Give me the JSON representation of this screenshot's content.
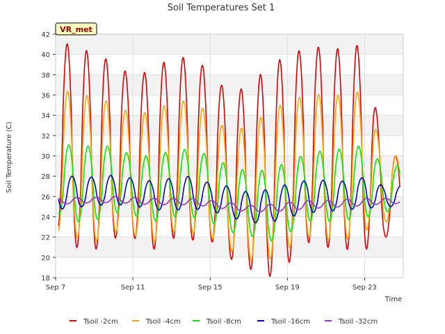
{
  "chart_data": {
    "type": "line",
    "title": "Soil Temperatures Set 1",
    "xlabel": "Time",
    "ylabel": "Soil Temperature (C)",
    "station_badge": "VR_met",
    "x_start_day": 7,
    "x_end_day": 25,
    "xlim": [
      "Sep 7",
      "Sep 25"
    ],
    "xticks": [
      {
        "label": "Sep 7",
        "day": 7
      },
      {
        "label": "Sep 11",
        "day": 11
      },
      {
        "label": "Sep 15",
        "day": 15
      },
      {
        "label": "Sep 19",
        "day": 19
      },
      {
        "label": "Sep 23",
        "day": 23
      }
    ],
    "ylim": [
      18,
      42
    ],
    "yticks": [
      18,
      20,
      22,
      24,
      26,
      28,
      30,
      32,
      34,
      36,
      38,
      40,
      42
    ],
    "grid": true,
    "legend_position": "bottom",
    "series": [
      {
        "name": "Tsoil -2cm",
        "color": "#dd0000",
        "peak_time": 0.6,
        "days": [
          "Sep 7",
          "Sep 8",
          "Sep 9",
          "Sep 10",
          "Sep 11",
          "Sep 12",
          "Sep 13",
          "Sep 14",
          "Sep 15",
          "Sep 16",
          "Sep 17",
          "Sep 18",
          "Sep 19",
          "Sep 20",
          "Sep 21",
          "Sep 22",
          "Sep 23",
          "Sep 24"
        ],
        "min": [
          23.0,
          21.0,
          20.7,
          21.9,
          22.0,
          20.7,
          21.9,
          21.7,
          21.7,
          19.9,
          18.9,
          18.0,
          19.3,
          21.5,
          21.0,
          20.8,
          20.7,
          22.0
        ],
        "max": [
          41.4,
          40.8,
          40.1,
          39.2,
          37.8,
          38.5,
          39.7,
          39.7,
          38.4,
          36.0,
          37.0,
          38.7,
          40.0,
          40.6,
          40.8,
          40.4,
          41.2,
          30.0
        ]
      },
      {
        "name": "Tsoil -4cm",
        "color": "#ffa500",
        "peak_time": 0.62,
        "days": [
          "Sep 7",
          "Sep 8",
          "Sep 9",
          "Sep 10",
          "Sep 11",
          "Sep 12",
          "Sep 13",
          "Sep 14",
          "Sep 15",
          "Sep 16",
          "Sep 17",
          "Sep 18",
          "Sep 19",
          "Sep 20",
          "Sep 21",
          "Sep 22",
          "Sep 23",
          "Sep 24"
        ],
        "min": [
          22.6,
          22.0,
          21.5,
          22.5,
          22.2,
          21.4,
          22.5,
          22.4,
          22.0,
          20.7,
          19.7,
          19.7,
          20.8,
          22.0,
          21.7,
          21.7,
          22.6,
          23.5
        ],
        "max": [
          36.6,
          36.2,
          35.8,
          35.2,
          34.1,
          34.4,
          35.3,
          35.5,
          34.2,
          32.3,
          33.0,
          34.3,
          35.4,
          36.0,
          36.1,
          35.9,
          36.5,
          30.0
        ]
      },
      {
        "name": "Tsoil -8cm",
        "color": "#00ee00",
        "peak_time": 0.68,
        "days": [
          "Sep 7",
          "Sep 8",
          "Sep 9",
          "Sep 10",
          "Sep 11",
          "Sep 12",
          "Sep 13",
          "Sep 14",
          "Sep 15",
          "Sep 16",
          "Sep 17",
          "Sep 18",
          "Sep 19",
          "Sep 20",
          "Sep 21",
          "Sep 22",
          "Sep 23",
          "Sep 24"
        ],
        "min": [
          24.5,
          23.5,
          23.6,
          24.5,
          24.2,
          23.5,
          24.0,
          24.0,
          23.5,
          22.5,
          22.2,
          21.5,
          22.3,
          23.6,
          23.5,
          23.7,
          23.9,
          24.5
        ],
        "max": [
          31.1,
          31.1,
          30.9,
          31.0,
          30.0,
          30.0,
          30.5,
          30.7,
          30.0,
          29.0,
          28.5,
          28.6,
          29.4,
          30.2,
          30.6,
          30.7,
          31.1,
          29.0
        ]
      },
      {
        "name": "Tsoil -16cm",
        "color": "#0000cc",
        "peak_time": 0.85,
        "days": [
          "Sep 7",
          "Sep 8",
          "Sep 9",
          "Sep 10",
          "Sep 11",
          "Sep 12",
          "Sep 13",
          "Sep 14",
          "Sep 15",
          "Sep 16",
          "Sep 17",
          "Sep 18",
          "Sep 19",
          "Sep 20",
          "Sep 21",
          "Sep 22",
          "Sep 23",
          "Sep 24"
        ],
        "min": [
          24.7,
          24.9,
          25.1,
          25.2,
          25.1,
          24.7,
          24.6,
          24.8,
          24.6,
          24.0,
          23.4,
          23.4,
          23.9,
          24.4,
          24.5,
          24.7,
          24.8,
          25.0
        ],
        "max": [
          28.0,
          28.0,
          27.9,
          28.1,
          27.8,
          27.5,
          27.8,
          28.0,
          27.3,
          27.0,
          26.4,
          26.7,
          27.2,
          27.6,
          27.6,
          27.5,
          27.9,
          27.0
        ]
      },
      {
        "name": "Tsoil -32cm",
        "color": "#9933cc",
        "peak_time": 1.1,
        "days": [
          "Sep 7",
          "Sep 8",
          "Sep 9",
          "Sep 10",
          "Sep 11",
          "Sep 12",
          "Sep 13",
          "Sep 14",
          "Sep 15",
          "Sep 16",
          "Sep 17",
          "Sep 18",
          "Sep 19",
          "Sep 20",
          "Sep 21",
          "Sep 22",
          "Sep 23",
          "Sep 24"
        ],
        "min": [
          25.2,
          25.3,
          25.4,
          25.4,
          25.3,
          25.2,
          25.2,
          25.2,
          25.0,
          24.7,
          24.5,
          24.5,
          24.6,
          24.8,
          24.9,
          25.0,
          25.1,
          25.3
        ],
        "max": [
          25.8,
          25.9,
          25.9,
          26.0,
          25.9,
          25.8,
          25.8,
          25.8,
          25.6,
          25.4,
          25.1,
          25.2,
          25.4,
          25.6,
          25.6,
          25.7,
          25.8,
          25.8
        ]
      }
    ]
  }
}
